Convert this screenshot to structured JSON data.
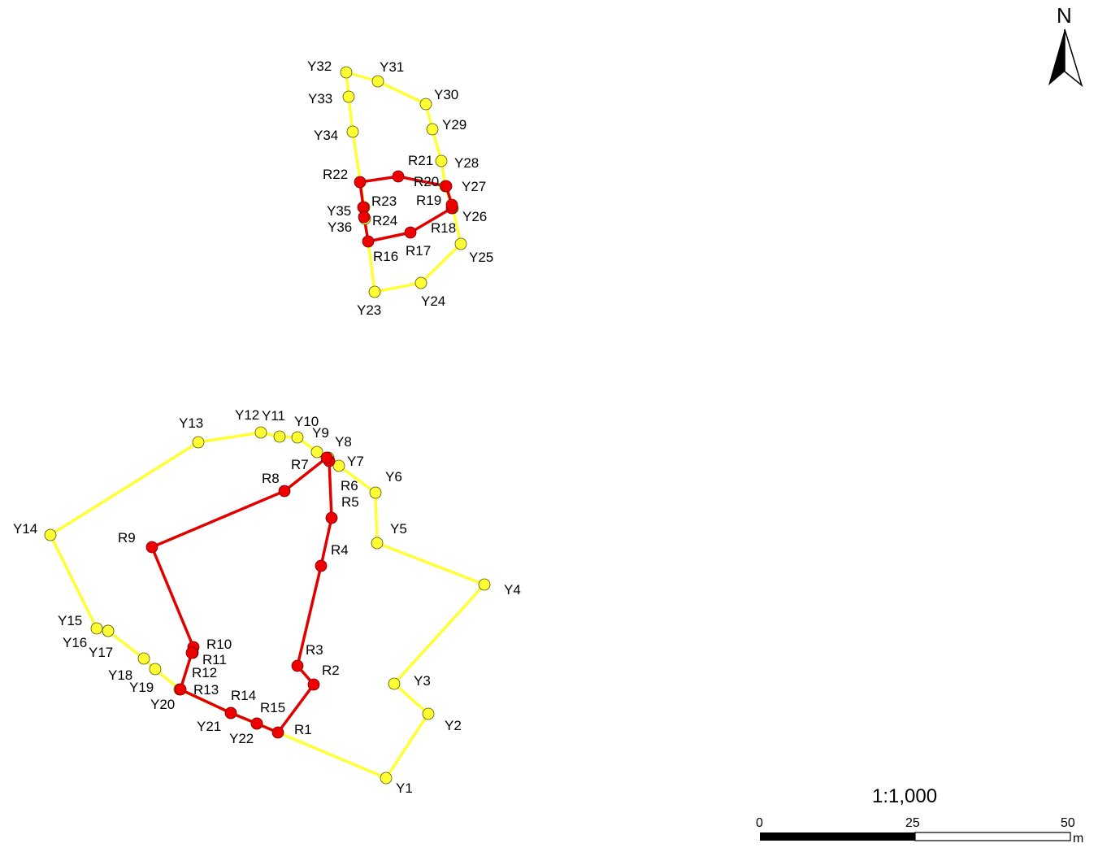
{
  "north_arrow": {
    "letter": "N"
  },
  "scale_bar": {
    "ratio": "1:1,000",
    "ticks": [
      "0",
      "25",
      "50"
    ],
    "unit": "m"
  },
  "colors": {
    "yellow_boundary": "#ffff33",
    "red_boundary": "#e00000"
  },
  "yellow_points_north": [
    "Y23",
    "Y24",
    "Y25",
    "Y26",
    "Y27",
    "Y28",
    "Y29",
    "Y30",
    "Y31",
    "Y32",
    "Y33",
    "Y34",
    "Y35",
    "Y36"
  ],
  "red_points_north": [
    "R16",
    "R17",
    "R18",
    "R19",
    "R20",
    "R21",
    "R22",
    "R23",
    "R24"
  ],
  "yellow_points_south": [
    "Y1",
    "Y2",
    "Y3",
    "Y4",
    "Y5",
    "Y6",
    "Y7",
    "Y8",
    "Y9",
    "Y10",
    "Y11",
    "Y12",
    "Y13",
    "Y14",
    "Y15",
    "Y16",
    "Y17",
    "Y18",
    "Y19",
    "Y20",
    "Y21",
    "Y22"
  ],
  "red_points_south": [
    "R1",
    "R2",
    "R3",
    "R4",
    "R5",
    "R6",
    "R7",
    "R8",
    "R9",
    "R10",
    "R11",
    "R12",
    "R13",
    "R14",
    "R15"
  ]
}
